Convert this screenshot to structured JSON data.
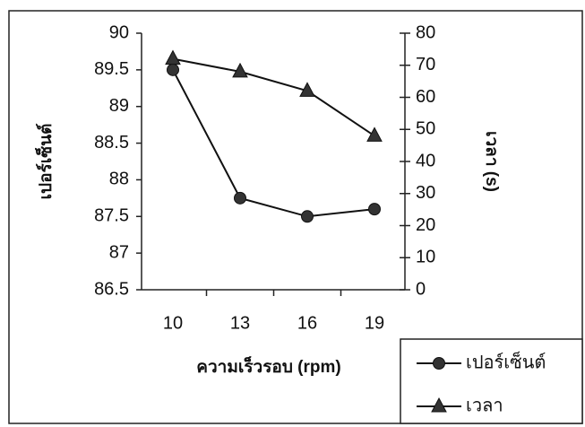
{
  "chart_data": {
    "type": "line",
    "categories": [
      "10",
      "13",
      "16",
      "19"
    ],
    "x_label": "ความเร็วรอบ (rpm)",
    "y_label": "เปอร์เซ็นต์",
    "y2_label": "เวลา (s)",
    "ylim": [
      86.5,
      90
    ],
    "yticks": [
      86.5,
      87,
      87.5,
      88,
      88.5,
      89,
      89.5,
      90
    ],
    "y2lim": [
      0,
      80
    ],
    "y2ticks": [
      0,
      10,
      20,
      30,
      40,
      50,
      60,
      70,
      80
    ],
    "series": [
      {
        "name": "เปอร์เซ็นต์",
        "color": "#333333",
        "marker": "circle",
        "values": [
          89.5,
          87.75,
          87.5,
          87.6
        ]
      },
      {
        "name": "เวลา",
        "color": "#333333",
        "marker": "triangle",
        "axis": "y2",
        "values": [
          72,
          68,
          62,
          48
        ]
      }
    ]
  }
}
